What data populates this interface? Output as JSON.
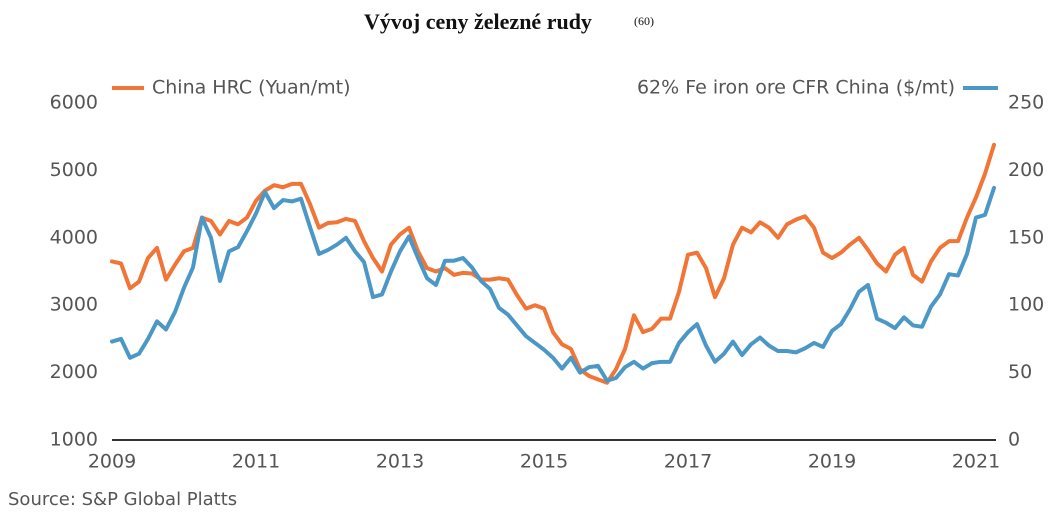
{
  "chart_data": {
    "type": "line",
    "title": "Vývoj ceny železné rudy",
    "title_note": "(60)",
    "source": "Source: S&P Global Platts",
    "x": [
      2009,
      2009.125,
      2009.25,
      2009.375,
      2009.5,
      2009.625,
      2009.75,
      2009.875,
      2010,
      2010.125,
      2010.25,
      2010.375,
      2010.5,
      2010.625,
      2010.75,
      2010.875,
      2011,
      2011.125,
      2011.25,
      2011.375,
      2011.5,
      2011.625,
      2011.75,
      2011.875,
      2012,
      2012.125,
      2012.25,
      2012.375,
      2012.5,
      2012.625,
      2012.75,
      2012.875,
      2013,
      2013.125,
      2013.25,
      2013.375,
      2013.5,
      2013.625,
      2013.75,
      2013.875,
      2014,
      2014.125,
      2014.25,
      2014.375,
      2014.5,
      2014.625,
      2014.75,
      2014.875,
      2015,
      2015.125,
      2015.25,
      2015.375,
      2015.5,
      2015.625,
      2015.75,
      2015.875,
      2016,
      2016.125,
      2016.25,
      2016.375,
      2016.5,
      2016.625,
      2016.75,
      2016.875,
      2017,
      2017.125,
      2017.25,
      2017.375,
      2017.5,
      2017.625,
      2017.75,
      2017.875,
      2018,
      2018.125,
      2018.25,
      2018.375,
      2018.5,
      2018.625,
      2018.75,
      2018.875,
      2019,
      2019.125,
      2019.25,
      2019.375,
      2019.5,
      2019.625,
      2019.75,
      2019.875,
      2020,
      2020.125,
      2020.25,
      2020.375,
      2020.5,
      2020.625,
      2020.75,
      2020.875,
      2021,
      2021.125,
      2021.25
    ],
    "series": [
      {
        "name": "China HRC (Yuan/mt)",
        "color": "#f07536",
        "axis": "y",
        "values": [
          3650,
          3620,
          3250,
          3350,
          3700,
          3850,
          3380,
          3600,
          3800,
          3850,
          4300,
          4250,
          4050,
          4250,
          4200,
          4300,
          4550,
          4700,
          4780,
          4750,
          4800,
          4800,
          4500,
          4150,
          4220,
          4230,
          4280,
          4250,
          3950,
          3700,
          3500,
          3900,
          4050,
          4150,
          3800,
          3550,
          3500,
          3550,
          3450,
          3480,
          3470,
          3380,
          3380,
          3400,
          3380,
          3150,
          2950,
          3000,
          2950,
          2600,
          2420,
          2350,
          2050,
          1950,
          1900,
          1850,
          2050,
          2350,
          2850,
          2600,
          2650,
          2800,
          2800,
          3200,
          3750,
          3780,
          3550,
          3120,
          3400,
          3900,
          4150,
          4080,
          4230,
          4150,
          4000,
          4200,
          4270,
          4320,
          4150,
          3780,
          3700,
          3780,
          3900,
          4000,
          3820,
          3620,
          3500,
          3750,
          3850,
          3450,
          3350,
          3650,
          3850,
          3950,
          3950,
          4300,
          4600,
          4950,
          5380
        ]
      },
      {
        "name": "62% Fe iron ore CFR China ($/mt)",
        "color": "#4b97c6",
        "axis": "y2",
        "values": [
          73,
          75,
          61,
          64,
          75,
          88,
          82,
          95,
          113,
          128,
          165,
          150,
          118,
          140,
          143,
          155,
          168,
          184,
          172,
          178,
          177,
          179,
          158,
          138,
          141,
          145,
          150,
          140,
          132,
          106,
          108,
          125,
          140,
          151,
          135,
          120,
          115,
          133,
          133,
          135,
          128,
          118,
          112,
          98,
          93,
          85,
          77,
          72,
          67,
          61,
          53,
          61,
          50,
          54,
          55,
          44,
          46,
          54,
          58,
          53,
          57,
          58,
          58,
          72,
          80,
          86,
          70,
          58,
          64,
          73,
          63,
          71,
          76,
          70,
          66,
          66,
          65,
          68,
          72,
          69,
          81,
          86,
          97,
          110,
          115,
          90,
          87,
          83,
          91,
          85,
          84,
          99,
          108,
          123,
          122,
          138,
          165,
          167,
          187
        ]
      }
    ],
    "xlim": [
      2009,
      2021.25
    ],
    "xticks": [
      2009,
      2011,
      2013,
      2015,
      2017,
      2019,
      2021
    ],
    "ylim": [
      1000,
      6000
    ],
    "yticks": [
      1000,
      2000,
      3000,
      4000,
      5000,
      6000
    ],
    "y2lim": [
      0,
      250
    ],
    "y2ticks": [
      0,
      50,
      100,
      150,
      200,
      250
    ],
    "grid": false,
    "legend": "top"
  }
}
